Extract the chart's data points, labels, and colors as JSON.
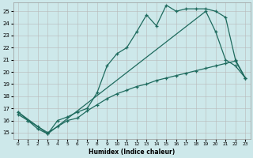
{
  "bg_color": "#cde8ea",
  "line_color": "#1e6b5e",
  "xlabel": "Humidex (Indice chaleur)",
  "xlim": [
    -0.5,
    23.5
  ],
  "ylim": [
    14.5,
    25.7
  ],
  "xticks": [
    0,
    1,
    2,
    3,
    4,
    5,
    6,
    7,
    8,
    9,
    10,
    11,
    12,
    13,
    14,
    15,
    16,
    17,
    18,
    19,
    20,
    21,
    22,
    23
  ],
  "yticks": [
    15,
    16,
    17,
    18,
    19,
    20,
    21,
    22,
    23,
    24,
    25
  ],
  "line1_x": [
    0,
    1,
    2,
    3,
    4,
    5,
    6,
    7,
    8,
    9,
    10,
    11,
    12,
    13,
    14,
    15,
    16,
    17,
    18,
    19,
    20,
    21,
    22,
    23
  ],
  "line1_y": [
    16.7,
    16.0,
    15.3,
    14.9,
    16.0,
    16.3,
    16.7,
    17.0,
    18.3,
    20.5,
    21.5,
    22.0,
    23.3,
    24.7,
    23.8,
    25.5,
    25.0,
    25.2,
    25.2,
    25.2,
    25.0,
    24.5,
    21.0,
    19.5
  ],
  "line2_x": [
    0,
    1,
    2,
    3,
    4,
    5,
    6,
    7,
    8,
    9,
    10,
    11,
    12,
    13,
    14,
    15,
    16,
    17,
    18,
    19,
    20,
    21,
    22,
    23
  ],
  "line2_y": [
    16.5,
    16.0,
    15.5,
    15.0,
    15.5,
    16.0,
    16.2,
    16.8,
    17.3,
    17.8,
    18.2,
    18.5,
    18.8,
    19.0,
    19.3,
    19.5,
    19.7,
    19.9,
    20.1,
    20.3,
    20.5,
    20.7,
    20.9,
    19.5
  ],
  "line3_x": [
    0,
    3,
    19,
    20,
    21,
    22,
    23
  ],
  "line3_y": [
    16.7,
    14.9,
    25.0,
    23.3,
    21.0,
    20.5,
    19.5
  ]
}
